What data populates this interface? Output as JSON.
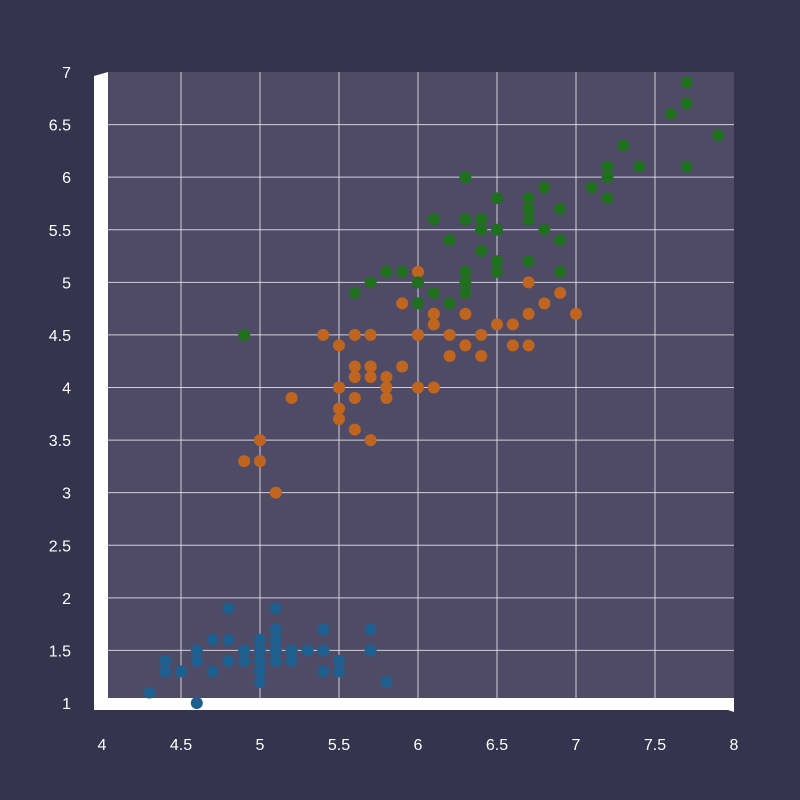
{
  "chart_data": {
    "type": "scatter",
    "title": "",
    "xlabel": "",
    "ylabel": "",
    "xlim": [
      4,
      8
    ],
    "ylim": [
      1,
      7
    ],
    "x_ticks": [
      "4",
      "4.5",
      "5",
      "5.5",
      "6",
      "6.5",
      "7",
      "7.5",
      "8"
    ],
    "y_ticks": [
      "1",
      "1.5",
      "2",
      "2.5",
      "3",
      "3.5",
      "4",
      "4.5",
      "5",
      "5.5",
      "6",
      "6.5",
      "7"
    ],
    "grid": true,
    "legend": "none",
    "colors": {
      "background": "#34344e",
      "plot_area": "#4f4b66",
      "frame": "#ffffff",
      "grid": "#e6e6ee",
      "text": "#ffffff"
    },
    "series": [
      {
        "color": "#1f5f8f",
        "points": [
          [
            5.1,
            1.4
          ],
          [
            4.9,
            1.4
          ],
          [
            4.7,
            1.3
          ],
          [
            4.6,
            1.5
          ],
          [
            5.0,
            1.4
          ],
          [
            5.4,
            1.7
          ],
          [
            4.6,
            1.4
          ],
          [
            5.0,
            1.5
          ],
          [
            4.4,
            1.4
          ],
          [
            4.9,
            1.5
          ],
          [
            5.4,
            1.5
          ],
          [
            4.8,
            1.6
          ],
          [
            4.8,
            1.4
          ],
          [
            4.3,
            1.1
          ],
          [
            5.8,
            1.2
          ],
          [
            5.7,
            1.5
          ],
          [
            5.4,
            1.3
          ],
          [
            5.1,
            1.4
          ],
          [
            5.7,
            1.7
          ],
          [
            5.1,
            1.5
          ],
          [
            5.4,
            1.7
          ],
          [
            5.1,
            1.5
          ],
          [
            4.6,
            1.0
          ],
          [
            5.1,
            1.7
          ],
          [
            4.8,
            1.9
          ],
          [
            5.0,
            1.6
          ],
          [
            5.0,
            1.6
          ],
          [
            5.2,
            1.5
          ],
          [
            5.2,
            1.4
          ],
          [
            4.7,
            1.6
          ],
          [
            4.8,
            1.6
          ],
          [
            5.4,
            1.5
          ],
          [
            5.2,
            1.5
          ],
          [
            5.5,
            1.4
          ],
          [
            4.9,
            1.5
          ],
          [
            5.0,
            1.2
          ],
          [
            5.5,
            1.3
          ],
          [
            4.9,
            1.4
          ],
          [
            4.4,
            1.3
          ],
          [
            5.1,
            1.5
          ],
          [
            5.0,
            1.3
          ],
          [
            4.5,
            1.3
          ],
          [
            4.4,
            1.3
          ],
          [
            5.0,
            1.6
          ],
          [
            5.1,
            1.9
          ],
          [
            4.8,
            1.4
          ],
          [
            5.1,
            1.6
          ],
          [
            4.6,
            1.4
          ],
          [
            5.3,
            1.5
          ],
          [
            5.0,
            1.4
          ]
        ]
      },
      {
        "color": "#c0651f",
        "points": [
          [
            7.0,
            4.7
          ],
          [
            6.4,
            4.5
          ],
          [
            6.9,
            4.9
          ],
          [
            5.5,
            4.0
          ],
          [
            6.5,
            4.6
          ],
          [
            5.7,
            4.5
          ],
          [
            6.3,
            4.7
          ],
          [
            4.9,
            3.3
          ],
          [
            6.6,
            4.6
          ],
          [
            5.2,
            3.9
          ],
          [
            5.0,
            3.5
          ],
          [
            5.9,
            4.2
          ],
          [
            6.0,
            4.0
          ],
          [
            6.1,
            4.7
          ],
          [
            5.6,
            3.6
          ],
          [
            6.7,
            4.4
          ],
          [
            5.6,
            4.5
          ],
          [
            5.8,
            4.1
          ],
          [
            6.2,
            4.5
          ],
          [
            5.6,
            3.9
          ],
          [
            5.9,
            4.8
          ],
          [
            6.1,
            4.0
          ],
          [
            6.3,
            4.9
          ],
          [
            6.1,
            4.7
          ],
          [
            6.4,
            4.3
          ],
          [
            6.6,
            4.4
          ],
          [
            6.8,
            4.8
          ],
          [
            6.7,
            5.0
          ],
          [
            6.0,
            4.5
          ],
          [
            5.7,
            3.5
          ],
          [
            5.5,
            3.8
          ],
          [
            5.5,
            3.7
          ],
          [
            5.8,
            3.9
          ],
          [
            6.0,
            5.1
          ],
          [
            5.4,
            4.5
          ],
          [
            6.0,
            4.5
          ],
          [
            6.7,
            4.7
          ],
          [
            6.3,
            4.4
          ],
          [
            5.6,
            4.1
          ],
          [
            5.5,
            4.0
          ],
          [
            5.5,
            4.4
          ],
          [
            6.1,
            4.6
          ],
          [
            5.8,
            4.0
          ],
          [
            5.0,
            3.3
          ],
          [
            5.6,
            4.2
          ],
          [
            5.7,
            4.2
          ],
          [
            5.7,
            4.2
          ],
          [
            6.2,
            4.3
          ],
          [
            5.1,
            3.0
          ],
          [
            5.7,
            4.1
          ]
        ]
      },
      {
        "color": "#1f6f1f",
        "points": [
          [
            6.3,
            6.0
          ],
          [
            5.8,
            5.1
          ],
          [
            7.1,
            5.9
          ],
          [
            6.3,
            5.6
          ],
          [
            6.5,
            5.8
          ],
          [
            7.6,
            6.6
          ],
          [
            4.9,
            4.5
          ],
          [
            7.3,
            6.3
          ],
          [
            6.7,
            5.8
          ],
          [
            7.2,
            6.1
          ],
          [
            6.5,
            5.1
          ],
          [
            6.4,
            5.3
          ],
          [
            6.8,
            5.5
          ],
          [
            5.7,
            5.0
          ],
          [
            5.8,
            5.1
          ],
          [
            6.4,
            5.3
          ],
          [
            6.5,
            5.5
          ],
          [
            7.7,
            6.7
          ],
          [
            7.7,
            6.9
          ],
          [
            6.0,
            5.0
          ],
          [
            6.9,
            5.7
          ],
          [
            5.6,
            4.9
          ],
          [
            7.7,
            6.7
          ],
          [
            6.3,
            4.9
          ],
          [
            6.7,
            5.7
          ],
          [
            7.2,
            6.0
          ],
          [
            6.2,
            4.8
          ],
          [
            6.1,
            4.9
          ],
          [
            6.4,
            5.6
          ],
          [
            7.2,
            5.8
          ],
          [
            7.4,
            6.1
          ],
          [
            7.9,
            6.4
          ],
          [
            6.4,
            5.6
          ],
          [
            6.3,
            5.1
          ],
          [
            6.1,
            5.6
          ],
          [
            7.7,
            6.1
          ],
          [
            6.3,
            5.6
          ],
          [
            6.4,
            5.5
          ],
          [
            6.0,
            4.8
          ],
          [
            6.9,
            5.4
          ],
          [
            6.7,
            5.6
          ],
          [
            6.9,
            5.1
          ],
          [
            5.8,
            5.1
          ],
          [
            6.8,
            5.9
          ],
          [
            6.7,
            5.7
          ],
          [
            6.7,
            5.2
          ],
          [
            6.3,
            5.0
          ],
          [
            6.5,
            5.2
          ],
          [
            6.2,
            5.4
          ],
          [
            5.9,
            5.1
          ]
        ]
      }
    ]
  }
}
